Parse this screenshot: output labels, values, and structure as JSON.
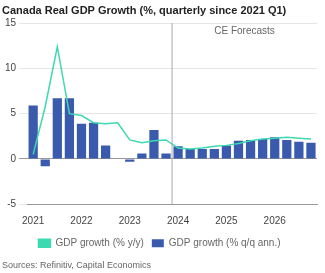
{
  "chart_data": {
    "type": "bar",
    "title": "Canada Real GDP Growth (%, quarterly since 2021 Q1)",
    "source": "Sources: Refinitiv, Capital Economics",
    "annotations": [
      {
        "text": "CE Forecasts",
        "x": 12
      }
    ],
    "categories": [
      "2021",
      null,
      null,
      null,
      "2022",
      null,
      null,
      null,
      "2023",
      null,
      null,
      null,
      "2024",
      null,
      null,
      null,
      "2025",
      null,
      null,
      null,
      "2026",
      null,
      null,
      null
    ],
    "series": [
      {
        "name": "GDP growth (% q/q ann.)",
        "type": "bar",
        "color": "#3a5aad",
        "values": [
          5.9,
          -0.8,
          6.7,
          6.7,
          3.9,
          4.0,
          1.5,
          0.0,
          -0.3,
          0.6,
          3.2,
          0.6,
          1.4,
          1.1,
          1.1,
          1.1,
          1.5,
          2.0,
          2.1,
          2.2,
          2.4,
          2.1,
          1.9,
          1.8
        ]
      },
      {
        "name": "GDP growth (% y/y)",
        "type": "line",
        "color": "#3dd9b0",
        "values": [
          0.5,
          5.8,
          12.4,
          5.0,
          4.8,
          4.0,
          3.9,
          4.0,
          2.1,
          1.8,
          2.0,
          2.1,
          1.2,
          1.1,
          1.2,
          1.4,
          1.5,
          1.7,
          2.0,
          2.2,
          2.3,
          2.4,
          2.3,
          2.2
        ]
      }
    ],
    "ylim": [
      -5,
      15
    ],
    "yticks": [
      -5,
      0,
      5,
      10,
      15
    ],
    "grid": true,
    "legend": "bottom"
  }
}
